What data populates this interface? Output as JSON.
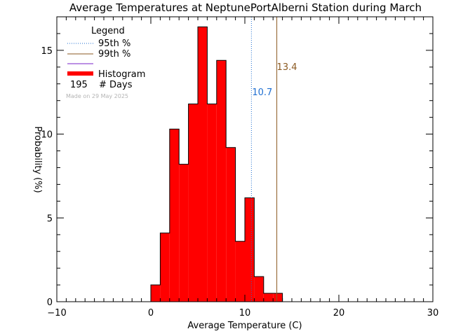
{
  "chart_data": {
    "type": "bar",
    "title": "Average Temperatures at NeptunePortAlberni Station during March",
    "xlabel": "Average Temperature (C)",
    "ylabel": "Probability (%)",
    "xlim": [
      -10,
      30
    ],
    "ylim": [
      0,
      17
    ],
    "x_ticks": [
      "−10",
      "0",
      "10",
      "20",
      "30"
    ],
    "x_tick_values": [
      -10,
      0,
      10,
      20,
      30
    ],
    "y_ticks": [
      "0",
      "5",
      "10",
      "15"
    ],
    "y_tick_values": [
      0,
      5,
      10,
      15
    ],
    "bin_width": 1,
    "bins": [
      {
        "x0": 0,
        "value": 1.0
      },
      {
        "x0": 1,
        "value": 4.1
      },
      {
        "x0": 2,
        "value": 10.3
      },
      {
        "x0": 3,
        "value": 8.2
      },
      {
        "x0": 4,
        "value": 11.8
      },
      {
        "x0": 5,
        "value": 16.4
      },
      {
        "x0": 6,
        "value": 11.8
      },
      {
        "x0": 7,
        "value": 14.4
      },
      {
        "x0": 8,
        "value": 9.2
      },
      {
        "x0": 9,
        "value": 3.6
      },
      {
        "x0": 10,
        "value": 6.2
      },
      {
        "x0": 11,
        "value": 1.5
      },
      {
        "x0": 12,
        "value": 0.5
      },
      {
        "x0": 13,
        "value": 0.5
      }
    ],
    "percentiles": [
      {
        "name": "95th %",
        "value": 10.7,
        "label": "10.7",
        "color": "#1f6fd1",
        "style": "dotted"
      },
      {
        "name": "99th %",
        "value": 13.4,
        "label": "13.4",
        "color": "#8b5a22",
        "style": "solid"
      }
    ],
    "legend": {
      "title": "Legend",
      "placement": "top-left",
      "entries": [
        {
          "label": "95th %",
          "color": "#1f6fd1",
          "style": "dotted"
        },
        {
          "label": "99th %",
          "color": "#8b5a22",
          "style": "solid"
        },
        {
          "label": "",
          "color": "#7a22c8",
          "style": "solid"
        },
        {
          "label": "Histogram",
          "color": "#ff0000",
          "style": "thick"
        }
      ],
      "days_count": "195",
      "days_label": "# Days",
      "made_on": "Made on 29 May 2025"
    },
    "colors": {
      "histogram_fill": "#ff0000",
      "histogram_edge": "#000000",
      "background": "#ffffff"
    }
  }
}
